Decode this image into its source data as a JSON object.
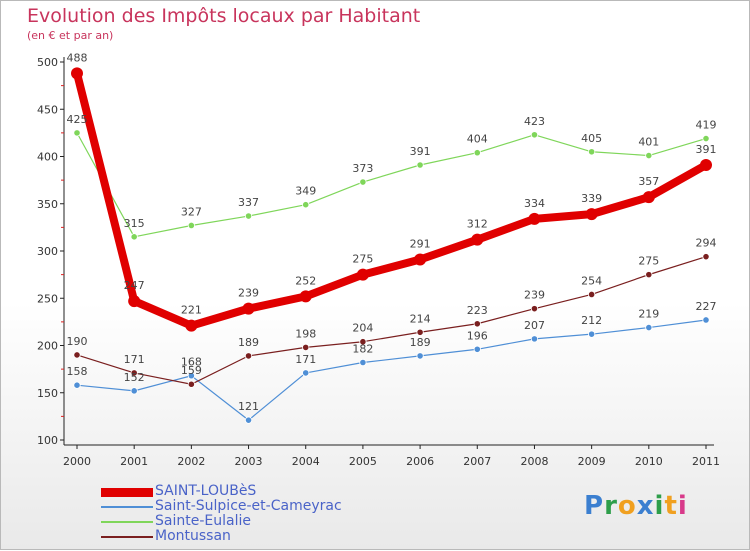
{
  "chart_data": {
    "type": "line",
    "title": "Evolution des Impôts locaux par Habitant",
    "subtitle": "(en € et par an)",
    "xlabel": "",
    "ylabel": "",
    "ylim": [
      100,
      500
    ],
    "yticks": [
      100,
      150,
      200,
      250,
      300,
      350,
      400,
      450,
      500
    ],
    "grid": false,
    "legend_position": "bottom-left",
    "x": [
      "2000",
      "2001",
      "2002",
      "2003",
      "2004",
      "2005",
      "2006",
      "2007",
      "2008",
      "2009",
      "2010",
      "2011"
    ],
    "series": [
      {
        "name": "SAINT-LOUBèS",
        "color": "#e00000",
        "values": [
          488,
          247,
          221,
          239,
          252,
          275,
          291,
          312,
          334,
          339,
          357,
          391
        ]
      },
      {
        "name": "Saint-Sulpice-et-Cameyrac",
        "color": "#4f8fd6",
        "values": [
          158,
          152,
          168,
          121,
          171,
          182,
          189,
          196,
          207,
          212,
          219,
          227
        ]
      },
      {
        "name": "Sainte-Eulalie",
        "color": "#7fd65a",
        "values": [
          425,
          315,
          327,
          337,
          349,
          373,
          391,
          404,
          423,
          405,
          401,
          419
        ]
      },
      {
        "name": "Montussan",
        "color": "#7a1f1f",
        "values": [
          190,
          171,
          159,
          189,
          198,
          204,
          214,
          223,
          239,
          254,
          275,
          294
        ]
      }
    ]
  },
  "brand": {
    "letters": [
      "P",
      "r",
      "o",
      "x",
      "i",
      "t",
      "i"
    ],
    "colors": [
      "#3b7fd0",
      "#2e9e4a",
      "#f0a020",
      "#3b7fd0",
      "#2e9e4a",
      "#f0a020",
      "#d83a8a"
    ]
  }
}
